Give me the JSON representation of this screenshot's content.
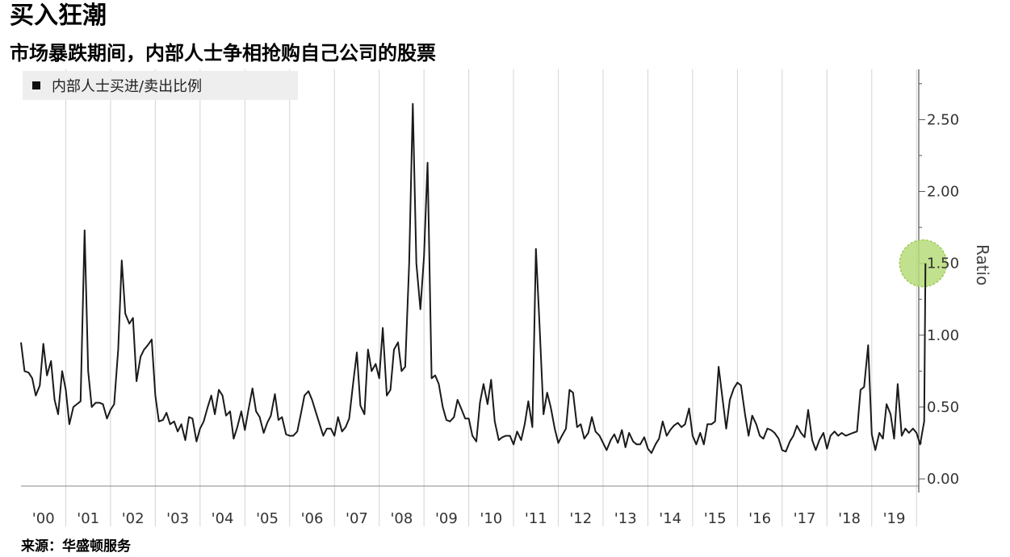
{
  "title": "买入狂潮",
  "subtitle": "市场暴跌期间，内部人士争相抢购自己公司的股票",
  "source": "来源：华盛顿服务",
  "colors": {
    "line": "#1a1a1a",
    "grid": "#d4d4d4",
    "highlight": "#b6dc7a",
    "legend_bg": "#eeeeee"
  },
  "chart_data": {
    "type": "line",
    "title": "",
    "xlabel": "",
    "ylabel": "Ratio",
    "ylim": [
      -0.05,
      2.85
    ],
    "xlim": [
      2000.0,
      2020.05
    ],
    "y_ticks": [
      "0.00",
      "0.50",
      "1.00",
      "1.50",
      "2.00",
      "2.50"
    ],
    "y_tick_values": [
      0,
      0.5,
      1.0,
      1.5,
      2.0,
      2.5
    ],
    "x_ticks": [
      "'00",
      "'01",
      "'02",
      "'03",
      "'04",
      "'05",
      "'06",
      "'07",
      "'08",
      "'09",
      "'10",
      "'11",
      "'12",
      "'13",
      "'14",
      "'15",
      "'16",
      "'17",
      "'18",
      "'19"
    ],
    "x_tick_years": [
      2000,
      2001,
      2002,
      2003,
      2004,
      2005,
      2006,
      2007,
      2008,
      2009,
      2010,
      2011,
      2012,
      2013,
      2014,
      2015,
      2016,
      2017,
      2018,
      2019
    ],
    "grid": "vertical",
    "legend_position": "top-left",
    "highlight": {
      "x": 2020.2,
      "y": 1.5,
      "note": "green circle marks latest value"
    },
    "series": [
      {
        "name": "内部人士买进/卖出比例",
        "x": [
          2000.0,
          2000.08,
          2000.17,
          2000.25,
          2000.33,
          2000.42,
          2000.5,
          2000.58,
          2000.67,
          2000.75,
          2000.83,
          2000.92,
          2001.0,
          2001.08,
          2001.17,
          2001.25,
          2001.33,
          2001.42,
          2001.5,
          2001.58,
          2001.67,
          2001.75,
          2001.83,
          2001.92,
          2002.0,
          2002.08,
          2002.17,
          2002.25,
          2002.33,
          2002.42,
          2002.5,
          2002.58,
          2002.67,
          2002.75,
          2002.83,
          2002.92,
          2003.0,
          2003.08,
          2003.17,
          2003.25,
          2003.33,
          2003.42,
          2003.5,
          2003.58,
          2003.67,
          2003.75,
          2003.83,
          2003.92,
          2004.0,
          2004.08,
          2004.17,
          2004.25,
          2004.33,
          2004.42,
          2004.5,
          2004.58,
          2004.67,
          2004.75,
          2004.83,
          2004.92,
          2005.0,
          2005.08,
          2005.17,
          2005.25,
          2005.33,
          2005.42,
          2005.5,
          2005.58,
          2005.67,
          2005.75,
          2005.83,
          2005.92,
          2006.0,
          2006.08,
          2006.17,
          2006.25,
          2006.33,
          2006.42,
          2006.5,
          2006.58,
          2006.67,
          2006.75,
          2006.83,
          2006.92,
          2007.0,
          2007.08,
          2007.17,
          2007.25,
          2007.33,
          2007.42,
          2007.5,
          2007.58,
          2007.67,
          2007.75,
          2007.83,
          2007.92,
          2008.0,
          2008.08,
          2008.17,
          2008.25,
          2008.33,
          2008.42,
          2008.5,
          2008.58,
          2008.67,
          2008.75,
          2008.83,
          2008.92,
          2009.0,
          2009.08,
          2009.17,
          2009.25,
          2009.33,
          2009.42,
          2009.5,
          2009.58,
          2009.67,
          2009.75,
          2009.83,
          2009.92,
          2010.0,
          2010.08,
          2010.17,
          2010.25,
          2010.33,
          2010.42,
          2010.5,
          2010.58,
          2010.67,
          2010.75,
          2010.83,
          2010.92,
          2011.0,
          2011.08,
          2011.17,
          2011.25,
          2011.33,
          2011.42,
          2011.5,
          2011.58,
          2011.67,
          2011.75,
          2011.83,
          2011.92,
          2012.0,
          2012.08,
          2012.17,
          2012.25,
          2012.33,
          2012.42,
          2012.5,
          2012.58,
          2012.67,
          2012.75,
          2012.83,
          2012.92,
          2013.0,
          2013.08,
          2013.17,
          2013.25,
          2013.33,
          2013.42,
          2013.5,
          2013.58,
          2013.67,
          2013.75,
          2013.83,
          2013.92,
          2014.0,
          2014.08,
          2014.17,
          2014.25,
          2014.33,
          2014.42,
          2014.5,
          2014.58,
          2014.67,
          2014.75,
          2014.83,
          2014.92,
          2015.0,
          2015.08,
          2015.17,
          2015.25,
          2015.33,
          2015.42,
          2015.5,
          2015.58,
          2015.67,
          2015.75,
          2015.83,
          2015.92,
          2016.0,
          2016.08,
          2016.17,
          2016.25,
          2016.33,
          2016.42,
          2016.5,
          2016.58,
          2016.67,
          2016.75,
          2016.83,
          2016.92,
          2017.0,
          2017.08,
          2017.17,
          2017.25,
          2017.33,
          2017.42,
          2017.5,
          2017.58,
          2017.67,
          2017.75,
          2017.83,
          2017.92,
          2018.0,
          2018.08,
          2018.17,
          2018.25,
          2018.33,
          2018.42,
          2018.5,
          2018.58,
          2018.67,
          2018.75,
          2018.83,
          2018.92,
          2019.0,
          2019.08,
          2019.17,
          2019.25,
          2019.33,
          2019.42,
          2019.5,
          2019.58,
          2019.67,
          2019.75,
          2019.83,
          2019.92,
          2020.0,
          2020.08,
          2020.17,
          2020.2
        ],
        "values": [
          0.95,
          0.75,
          0.74,
          0.7,
          0.58,
          0.65,
          0.94,
          0.72,
          0.82,
          0.55,
          0.45,
          0.75,
          0.62,
          0.38,
          0.5,
          0.52,
          0.54,
          1.73,
          0.75,
          0.5,
          0.53,
          0.53,
          0.52,
          0.42,
          0.48,
          0.52,
          0.9,
          1.52,
          1.15,
          1.08,
          1.12,
          0.68,
          0.85,
          0.9,
          0.93,
          0.97,
          0.58,
          0.4,
          0.41,
          0.46,
          0.38,
          0.4,
          0.33,
          0.38,
          0.27,
          0.43,
          0.42,
          0.26,
          0.35,
          0.4,
          0.5,
          0.58,
          0.45,
          0.62,
          0.58,
          0.44,
          0.47,
          0.28,
          0.36,
          0.47,
          0.34,
          0.48,
          0.63,
          0.47,
          0.43,
          0.32,
          0.39,
          0.44,
          0.59,
          0.41,
          0.43,
          0.31,
          0.3,
          0.3,
          0.33,
          0.45,
          0.58,
          0.61,
          0.55,
          0.47,
          0.38,
          0.3,
          0.35,
          0.35,
          0.3,
          0.43,
          0.33,
          0.36,
          0.42,
          0.67,
          0.88,
          0.51,
          0.45,
          0.9,
          0.75,
          0.8,
          0.7,
          1.05,
          0.58,
          0.62,
          0.9,
          0.95,
          0.75,
          0.78,
          1.5,
          2.61,
          1.5,
          1.18,
          1.55,
          2.2,
          0.7,
          0.72,
          0.66,
          0.5,
          0.41,
          0.4,
          0.43,
          0.55,
          0.49,
          0.42,
          0.42,
          0.3,
          0.26,
          0.53,
          0.66,
          0.52,
          0.69,
          0.4,
          0.27,
          0.29,
          0.3,
          0.3,
          0.24,
          0.33,
          0.27,
          0.38,
          0.54,
          0.36,
          1.6,
          1.08,
          0.45,
          0.6,
          0.5,
          0.35,
          0.25,
          0.3,
          0.35,
          0.62,
          0.6,
          0.36,
          0.38,
          0.28,
          0.32,
          0.43,
          0.33,
          0.3,
          0.25,
          0.2,
          0.27,
          0.31,
          0.25,
          0.34,
          0.22,
          0.32,
          0.26,
          0.24,
          0.24,
          0.29,
          0.21,
          0.18,
          0.24,
          0.28,
          0.4,
          0.3,
          0.34,
          0.37,
          0.39,
          0.36,
          0.38,
          0.49,
          0.3,
          0.24,
          0.32,
          0.24,
          0.38,
          0.38,
          0.4,
          0.78,
          0.55,
          0.35,
          0.55,
          0.63,
          0.67,
          0.65,
          0.45,
          0.3,
          0.44,
          0.38,
          0.3,
          0.28,
          0.35,
          0.34,
          0.32,
          0.28,
          0.2,
          0.19,
          0.26,
          0.3,
          0.37,
          0.32,
          0.29,
          0.48,
          0.27,
          0.2,
          0.27,
          0.32,
          0.21,
          0.3,
          0.33,
          0.3,
          0.32,
          0.3,
          0.31,
          0.32,
          0.33,
          0.62,
          0.64,
          0.93,
          0.31,
          0.2,
          0.32,
          0.28,
          0.52,
          0.45,
          0.28,
          0.66,
          0.3,
          0.35,
          0.32,
          0.35,
          0.32,
          0.24,
          0.4,
          1.5
        ]
      }
    ]
  }
}
